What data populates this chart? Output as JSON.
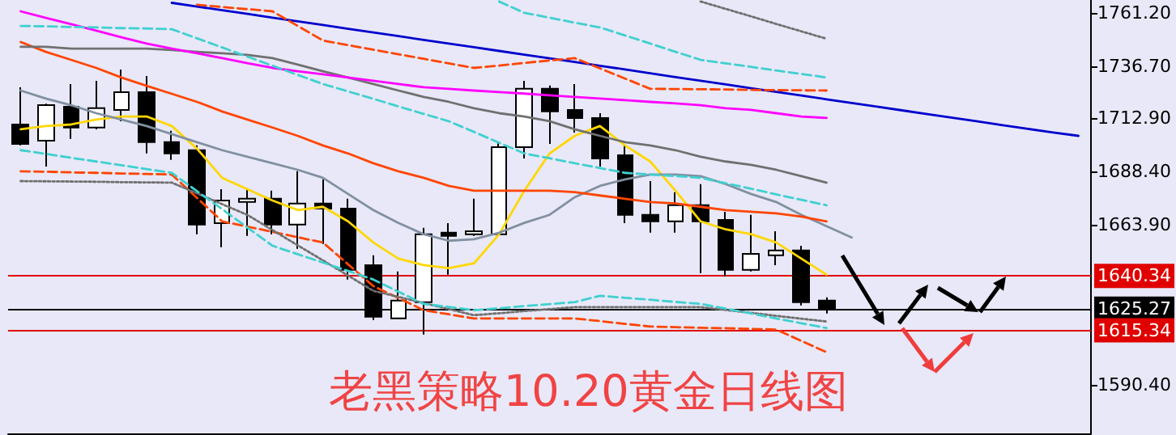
{
  "chart_data": {
    "type": "candlestick",
    "title": "老黑策略10.20黄金日线图",
    "categories": [
      null,
      null,
      null,
      null,
      null,
      null,
      null,
      null,
      null,
      null,
      null,
      null,
      null,
      null,
      null,
      null,
      null,
      null,
      null,
      null,
      null,
      null,
      null,
      null,
      null,
      null,
      null,
      null,
      null,
      null,
      null,
      null,
      null,
      null,
      null,
      null,
      null,
      null,
      null,
      null,
      null,
      null,
      null
    ],
    "ohlc": [
      [
        1709.9,
        1727.0,
        1700.3,
        1701.0
      ],
      [
        1702.5,
        1719.5,
        1690.6,
        1718.8
      ],
      [
        1718.1,
        1728.5,
        1703.3,
        1708.5
      ],
      [
        1708.5,
        1730.0,
        1707.7,
        1717.4
      ],
      [
        1716.6,
        1735.2,
        1711.4,
        1724.8
      ],
      [
        1724.8,
        1732.2,
        1696.6,
        1701.8
      ],
      [
        1701.8,
        1707.0,
        1693.6,
        1696.6
      ],
      [
        1698.1,
        1700.3,
        1659.5,
        1663.9
      ],
      [
        1664.6,
        1680.2,
        1653.5,
        1675.0
      ],
      [
        1674.3,
        1680.2,
        1658.7,
        1675.8
      ],
      [
        1675.8,
        1679.5,
        1659.5,
        1663.9
      ],
      [
        1663.9,
        1688.4,
        1652.8,
        1673.6
      ],
      [
        1673.6,
        1684.7,
        1655.0,
        1671.3
      ],
      [
        1671.3,
        1675.8,
        1638.7,
        1643.1
      ],
      [
        1645.3,
        1649.8,
        1620.1,
        1621.6
      ],
      [
        1620.8,
        1642.4,
        1620.8,
        1629.0
      ],
      [
        1628.3,
        1662.4,
        1613.4,
        1659.5
      ],
      [
        1660.2,
        1664.6,
        1640.9,
        1658.7
      ],
      [
        1659.5,
        1675.8,
        1658.7,
        1660.9
      ],
      [
        1659.5,
        1701.8,
        1658.7,
        1699.5
      ],
      [
        1699.5,
        1730.0,
        1694.3,
        1726.3
      ],
      [
        1726.3,
        1727.8,
        1701.0,
        1715.9
      ],
      [
        1716.6,
        1728.5,
        1706.2,
        1712.9
      ],
      [
        1712.9,
        1715.1,
        1690.6,
        1694.3
      ],
      [
        1695.8,
        1700.3,
        1664.6,
        1668.4
      ],
      [
        1668.4,
        1683.9,
        1660.2,
        1665.4
      ],
      [
        1665.4,
        1678.8,
        1660.2,
        1672.8
      ],
      [
        1672.8,
        1682.5,
        1641.6,
        1665.4
      ],
      [
        1666.1,
        1669.8,
        1640.2,
        1643.1
      ],
      [
        1643.1,
        1668.4,
        1642.4,
        1650.5
      ],
      [
        1649.8,
        1660.9,
        1645.3,
        1652.0
      ],
      [
        1652.0,
        1654.2,
        1626.8,
        1628.3
      ],
      [
        1629.0,
        1630.5,
        1623.1,
        1625.3
      ],
      null,
      null,
      null,
      null,
      null,
      null,
      null,
      null,
      null,
      null
    ],
    "series": [
      {
        "type": "line",
        "color": "#ffd700",
        "values": [
          1707.7,
          1709.2,
          1709.9,
          1712.2,
          1713.6,
          1713.6,
          1709.2,
          1698.8,
          1685.4,
          1680.2,
          1675.0,
          1670.6,
          1672.1,
          1665.4,
          1655.7,
          1648.3,
          1645.3,
          1643.9,
          1646.1,
          1659.5,
          1679.5,
          1696.6,
          1704.7,
          1709.2,
          1700.3,
          1692.9,
          1679.5,
          1665.4,
          1661.7,
          1659.5,
          1655.7,
          1648.3,
          1640.9,
          null,
          null,
          null,
          null,
          null,
          null,
          null,
          null,
          null,
          null
        ]
      },
      {
        "type": "line",
        "color": "#8090a0",
        "values": [
          1725.5,
          1721.8,
          1718.8,
          1715.1,
          1712.2,
          1709.2,
          1705.5,
          1701.8,
          1698.1,
          1695.1,
          1692.1,
          1689.1,
          1685.4,
          1678.0,
          1670.6,
          1664.7,
          1659.5,
          1656.5,
          1657.2,
          1660.2,
          1664.7,
          1668.4,
          1676.5,
          1681.7,
          1684.7,
          1686.9,
          1686.9,
          1686.2,
          1682.5,
          1678.0,
          1674.3,
          1668.4,
          1663.2,
          1658.0,
          null,
          null,
          null,
          null,
          null,
          null,
          null,
          null,
          null
        ]
      },
      {
        "type": "line",
        "color": "#ff4500",
        "values": [
          1747.8,
          1743.3,
          1739.6,
          1735.9,
          1731.5,
          1727.7,
          1724.0,
          1720.3,
          1715.9,
          1712.2,
          1708.5,
          1704.7,
          1700.3,
          1696.6,
          1692.1,
          1688.4,
          1685.4,
          1681.7,
          1679.5,
          1679.5,
          1679.5,
          1679.5,
          1678.8,
          1677.3,
          1675.8,
          1674.3,
          1673.6,
          1672.1,
          1670.6,
          1669.8,
          1669.1,
          1667.6,
          1665.4,
          null,
          null,
          null,
          null,
          null,
          null,
          null,
          null,
          null,
          null
        ]
      },
      {
        "type": "line",
        "color": "#707070",
        "values": [
          1745.6,
          1745.6,
          1744.8,
          1744.8,
          1744.8,
          1744.8,
          1744.1,
          1743.3,
          1742.6,
          1741.9,
          1740.4,
          1737.4,
          1734.4,
          1731.5,
          1728.5,
          1725.5,
          1722.6,
          1720.3,
          1717.4,
          1715.1,
          1713.6,
          1711.4,
          1707.7,
          1704.7,
          1701.8,
          1700.3,
          1698.1,
          1695.1,
          1692.9,
          1691.4,
          1689.1,
          1686.2,
          1683.2,
          null,
          null,
          null,
          null,
          null,
          null,
          null,
          null,
          null,
          null
        ]
      },
      {
        "type": "line",
        "color": "#ff00ff",
        "values": [
          1761.9,
          1758.9,
          1756.0,
          1753.0,
          1750.0,
          1747.1,
          1744.8,
          1742.6,
          1740.4,
          1738.1,
          1735.9,
          1734.4,
          1733.0,
          1731.5,
          1730.0,
          1728.5,
          1727.0,
          1726.3,
          1725.5,
          1724.8,
          1724.1,
          1723.3,
          1722.6,
          1721.8,
          1721.1,
          1720.3,
          1719.6,
          1718.8,
          1717.4,
          1716.6,
          1715.1,
          1713.6,
          1712.9,
          null,
          null,
          null,
          null,
          null,
          null,
          null,
          null,
          null,
          null
        ]
      },
      {
        "type": "line",
        "color": "#0000cd",
        "values": [
          null,
          null,
          null,
          null,
          null,
          null,
          1765.8,
          1764.1,
          1762.4,
          1760.7,
          1759.0,
          1757.3,
          1755.6,
          1753.9,
          1752.2,
          1750.5,
          1748.8,
          1747.1,
          1745.4,
          1743.7,
          1742.0,
          1740.3,
          1738.6,
          1736.9,
          1735.2,
          1733.4,
          1731.7,
          1730.0,
          1728.3,
          1726.6,
          1724.9,
          1723.2,
          1721.5,
          1719.8,
          1718.1,
          1716.4,
          1714.7,
          1713.0,
          1711.3,
          1709.6,
          1707.9,
          1706.2,
          1704.7
        ]
      },
      {
        "type": "line",
        "color": "#40d0d0",
        "line_style": "dashed",
        "values": [
          1755.2,
          1755.0,
          1754.7,
          1754.5,
          1754.2,
          1754.0,
          1753.7,
          1749.5,
          1745.3,
          1741.1,
          1736.9,
          1732.7,
          1728.5,
          1725.1,
          1721.7,
          1718.2,
          1714.8,
          1711.4,
          1706.5,
          1701.5,
          1696.6,
          1694.4,
          1692.1,
          1689.9,
          1687.7,
          1686.9,
          1686.2,
          1685.4,
          1682.9,
          1680.4,
          1677.8,
          1675.3,
          1672.8,
          null,
          null,
          null,
          null,
          null,
          null,
          null,
          null,
          null,
          null
        ]
      },
      {
        "type": "line",
        "color": "#40d0d0",
        "line_style": "dashed",
        "values": [
          null,
          null,
          null,
          null,
          null,
          null,
          null,
          null,
          null,
          null,
          null,
          null,
          null,
          null,
          null,
          null,
          null,
          null,
          null,
          1766.4,
          1761.2,
          1759.0,
          1756.7,
          1754.5,
          1750.8,
          1747.1,
          1743.3,
          1739.6,
          1738.0,
          1736.4,
          1734.7,
          1733.1,
          1731.5,
          null,
          null,
          null,
          null,
          null,
          null,
          null,
          null,
          null,
          null
        ]
      },
      {
        "type": "line",
        "color": "#707070",
        "line_style": "dotted",
        "values": [
          null,
          null,
          null,
          null,
          null,
          null,
          null,
          null,
          null,
          null,
          null,
          null,
          null,
          null,
          null,
          null,
          null,
          null,
          null,
          null,
          null,
          null,
          null,
          null,
          null,
          null,
          null,
          1766.4,
          1763.0,
          1759.6,
          1756.1,
          1752.7,
          1749.3,
          null,
          null,
          null,
          null,
          null,
          null,
          null,
          null,
          null,
          null
        ]
      },
      {
        "type": "line",
        "color": "#ff4500",
        "line_style": "dashed",
        "values": [
          null,
          null,
          null,
          null,
          null,
          null,
          null,
          1764.9,
          1763.9,
          1762.9,
          1761.9,
          1755.2,
          1748.5,
          1746.4,
          1744.3,
          1742.2,
          1740.1,
          1738.0,
          1735.9,
          1737.0,
          1738.2,
          1739.3,
          1740.4,
          1735.7,
          1731.0,
          1726.3,
          1726.2,
          1726.1,
          1726.0,
          1725.8,
          1725.7,
          1725.6,
          1725.5,
          null,
          null,
          null,
          null,
          null,
          null,
          null,
          null,
          null,
          null
        ]
      },
      {
        "type": "line",
        "color": "#ff4500",
        "line_style": "dashed",
        "values": [
          1688.4,
          1688.2,
          1687.9,
          1687.7,
          1687.4,
          1687.2,
          1686.9,
          1676.2,
          1665.4,
          1663.0,
          1660.6,
          1658.1,
          1655.7,
          1645.7,
          1635.7,
          1630.2,
          1624.6,
          1622.7,
          1620.8,
          1620.8,
          1620.8,
          1620.8,
          1620.8,
          1619.6,
          1618.3,
          1617.1,
          1616.8,
          1616.5,
          1616.3,
          1616.0,
          1615.7,
          1610.5,
          1605.3,
          null,
          null,
          null,
          null,
          null,
          null,
          null,
          null,
          null,
          null
        ]
      },
      {
        "type": "line",
        "color": "#707070",
        "line_style": "dotted",
        "values": [
          1683.9,
          1683.8,
          1683.7,
          1683.6,
          1683.4,
          1683.3,
          1683.2,
          1678.3,
          1673.3,
          1668.4,
          1661.4,
          1654.4,
          1647.5,
          1640.5,
          1633.5,
          1630.7,
          1627.9,
          1625.1,
          1622.3,
          1623.2,
          1624.2,
          1625.1,
          1626.0,
          1626.0,
          1626.0,
          1626.0,
          1626.0,
          1626.0,
          1624.7,
          1623.4,
          1622.0,
          1620.7,
          1619.4,
          null,
          null,
          null,
          null,
          null,
          null,
          null,
          null,
          null,
          null
        ]
      },
      {
        "type": "line",
        "color": "#40d0d0",
        "line_style": "dashed",
        "values": [
          1698.1,
          1696.4,
          1694.6,
          1692.9,
          1691.2,
          1689.4,
          1687.7,
          1679.3,
          1671.0,
          1662.6,
          1654.2,
          1650.3,
          1646.5,
          1642.6,
          1638.7,
          1633.1,
          1627.5,
          1626.1,
          1624.6,
          1625.5,
          1626.5,
          1627.4,
          1628.3,
          1631.2,
          1630.3,
          1629.4,
          1628.4,
          1627.5,
          1625.3,
          1623.1,
          1620.8,
          1618.6,
          1616.4,
          null,
          null,
          null,
          null,
          null,
          null,
          null,
          null,
          null,
          null
        ]
      }
    ],
    "ylim": [
      1568,
      1767.1
    ],
    "yticks": [
      {
        "value": 1761.2,
        "label": "1761.20"
      },
      {
        "value": 1736.7,
        "label": "1736.70"
      },
      {
        "value": 1712.9,
        "label": "1712.90"
      },
      {
        "value": 1688.4,
        "label": "1688.40"
      },
      {
        "value": 1663.9,
        "label": "1663.90"
      },
      {
        "value": 1590.4,
        "label": "1590.40"
      }
    ],
    "ref_lines": [
      {
        "axis": "y",
        "value": 1640.34,
        "label": "1640.34",
        "color": "#e00000"
      },
      {
        "axis": "y",
        "value": 1625.27,
        "label": "1625.27",
        "color": "#000000"
      },
      {
        "axis": "y",
        "value": 1615.34,
        "label": "1615.34",
        "color": "#e00000"
      }
    ],
    "grid": false,
    "marker": "none",
    "tick_labels": "y"
  }
}
